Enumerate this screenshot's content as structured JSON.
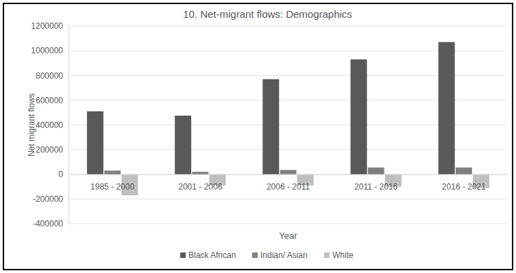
{
  "chart_data": {
    "type": "bar",
    "title": "10. Net-migrant flows: Demographics",
    "x_label": "Year",
    "y_label": "Net migrant flows",
    "categories": [
      "1985 - 2000",
      "2001 - 2006",
      "2006 - 2011",
      "2011 - 2016",
      "2016 - 2021"
    ],
    "series": [
      {
        "name": "Black African",
        "color": "#595959",
        "values": [
          510000,
          475000,
          770000,
          930000,
          1070000
        ]
      },
      {
        "name": "Indian/ Asian",
        "color": "#808080",
        "values": [
          30000,
          20000,
          35000,
          55000,
          55000
        ]
      },
      {
        "name": "White",
        "color": "#bfbfbf",
        "values": [
          -170000,
          -90000,
          -90000,
          -100000,
          -110000
        ]
      }
    ],
    "ylim": [
      -400000,
      1200000
    ],
    "yticks": [
      -400000,
      -200000,
      0,
      200000,
      400000,
      600000,
      800000,
      1000000,
      1200000
    ],
    "grid": true,
    "legend": "bottom"
  }
}
